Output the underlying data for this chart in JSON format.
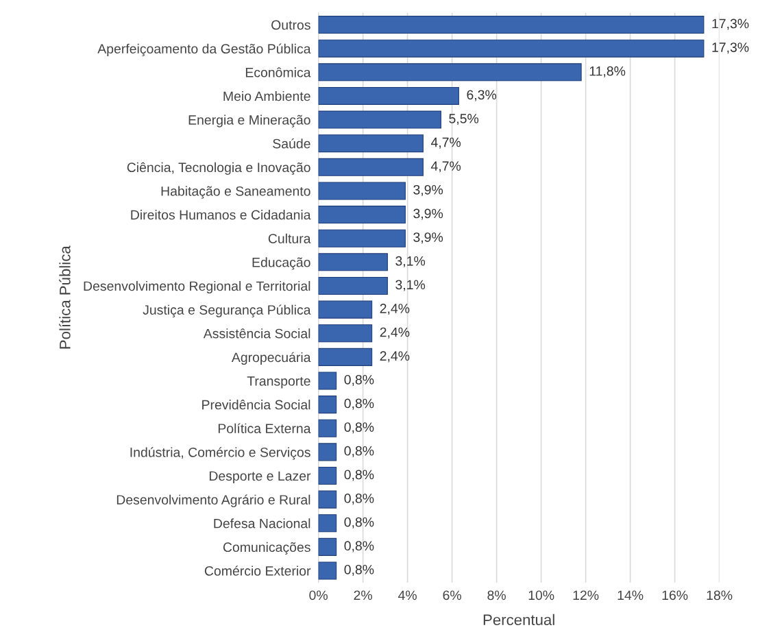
{
  "chart_data": {
    "type": "bar",
    "orientation": "horizontal",
    "xlabel": "Percentual",
    "ylabel": "Política Pública",
    "categories": [
      "Outros",
      "Aperfeiçoamento da Gestão Pública",
      "Econômica",
      "Meio Ambiente",
      "Energia e Mineração",
      "Saúde",
      "Ciência, Tecnologia e Inovação",
      "Habitação e Saneamento",
      "Direitos Humanos e Cidadania",
      "Cultura",
      "Educação",
      "Desenvolvimento Regional e Territorial",
      "Justiça e Segurança Pública",
      "Assistência Social",
      "Agropecuária",
      "Transporte",
      "Previdência Social",
      "Política Externa",
      "Indústria, Comércio e Serviços",
      "Desporte e Lazer",
      "Desenvolvimento Agrário e Rural",
      "Defesa Nacional",
      "Comunicações",
      "Comércio Exterior"
    ],
    "values": [
      17.3,
      17.3,
      11.8,
      6.3,
      5.5,
      4.7,
      4.7,
      3.9,
      3.9,
      3.9,
      3.1,
      3.1,
      2.4,
      2.4,
      2.4,
      0.8,
      0.8,
      0.8,
      0.8,
      0.8,
      0.8,
      0.8,
      0.8,
      0.8
    ],
    "value_labels": [
      "17,3%",
      "17,3%",
      "11,8%",
      "6,3%",
      "5,5%",
      "4,7%",
      "4,7%",
      "3,9%",
      "3,9%",
      "3,9%",
      "3,1%",
      "3,1%",
      "2,4%",
      "2,4%",
      "2,4%",
      "0,8%",
      "0,8%",
      "0,8%",
      "0,8%",
      "0,8%",
      "0,8%",
      "0,8%",
      "0,8%",
      "0,8%"
    ],
    "color": "#3a66b0",
    "xlim": [
      0,
      18
    ],
    "xticks": [
      {
        "value": 0,
        "label": "0%"
      },
      {
        "value": 2,
        "label": "2%"
      },
      {
        "value": 4,
        "label": "4%"
      },
      {
        "value": 6,
        "label": "6%"
      },
      {
        "value": 8,
        "label": "8%"
      },
      {
        "value": 10,
        "label": "10%"
      },
      {
        "value": 12,
        "label": "12%"
      },
      {
        "value": 14,
        "label": "14%"
      },
      {
        "value": 16,
        "label": "16%"
      },
      {
        "value": 18,
        "label": "18%"
      }
    ],
    "grid": "x",
    "legend": false
  }
}
